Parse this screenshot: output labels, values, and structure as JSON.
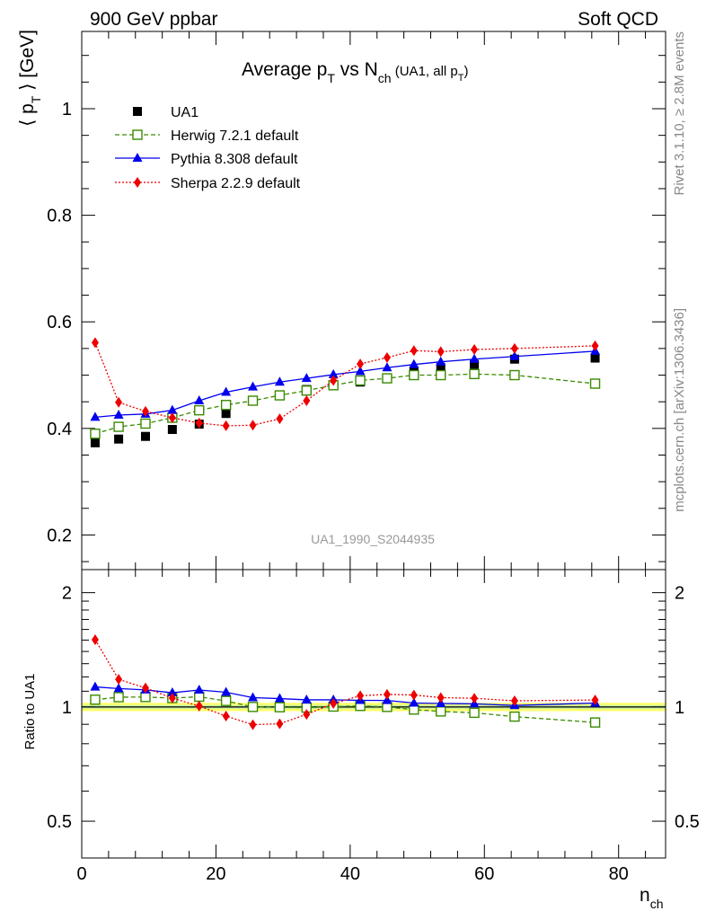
{
  "header": {
    "left": "900 GeV ppbar",
    "right": "Soft QCD"
  },
  "side": {
    "rivet": "Rivet 3.1.10, ≥ 2.8M events",
    "mcplots": "mcplots.cern.ch [arXiv:1306.3436]"
  },
  "chart_data": [
    {
      "type": "scatter",
      "title": {
        "main": "Average p",
        "main_sub": "T",
        "vs": " vs N",
        "vs_sub": "ch",
        "paren_open": " (UA1, all p",
        "paren_sub": "T",
        "paren_close": ")"
      },
      "watermark": "UA1_1990_S2044935",
      "ylabel": {
        "l": "⟨ p",
        "sub": "T",
        "r": " ⟩ [GeV]"
      },
      "xlim": [
        0,
        87
      ],
      "ylim": [
        0.135,
        1.145
      ],
      "y_ticks": [
        0.2,
        0.4,
        0.6,
        0.8,
        1.0
      ],
      "y_tick_labels": [
        "0.2",
        "0.4",
        "0.6",
        "0.8",
        "1"
      ],
      "grid": false,
      "legend_position": "top-left",
      "x": [
        2,
        5.5,
        9.5,
        13.5,
        17.5,
        21.5,
        25.5,
        29.5,
        33.5,
        37.5,
        41.5,
        45.5,
        49.5,
        53.5,
        58.5,
        64.5,
        76.5
      ],
      "series": [
        {
          "name": "UA1",
          "style": "data",
          "color": "#000000",
          "marker": "square-filled",
          "values": [
            0.373,
            0.38,
            0.385,
            0.398,
            0.408,
            0.428,
            0.452,
            0.463,
            0.473,
            0.48,
            0.487,
            0.494,
            0.508,
            0.514,
            0.52,
            0.53,
            0.532
          ]
        },
        {
          "name": "Herwig 7.2.1 default",
          "style": "dashed",
          "color": "#3a8a00",
          "marker": "square-open",
          "values": [
            0.39,
            0.403,
            0.409,
            0.42,
            0.434,
            0.444,
            0.452,
            0.462,
            0.471,
            0.481,
            0.49,
            0.494,
            0.5,
            0.5,
            0.502,
            0.5,
            0.484
          ]
        },
        {
          "name": "Pythia 8.308 default",
          "style": "solid",
          "color": "#0000ee",
          "marker": "triangle",
          "values": [
            0.421,
            0.425,
            0.427,
            0.434,
            0.452,
            0.468,
            0.478,
            0.487,
            0.494,
            0.501,
            0.507,
            0.514,
            0.52,
            0.525,
            0.53,
            0.535,
            0.545
          ]
        },
        {
          "name": "Sherpa 2.2.9 default",
          "style": "dotted",
          "color": "#ee0000",
          "marker": "diamond",
          "values": [
            0.561,
            0.449,
            0.432,
            0.42,
            0.41,
            0.405,
            0.406,
            0.418,
            0.452,
            0.49,
            0.521,
            0.533,
            0.546,
            0.544,
            0.548,
            0.55,
            0.555
          ]
        }
      ]
    },
    {
      "type": "scatter",
      "ylabel": "Ratio to UA1",
      "xlabel": {
        "l": "n",
        "sub": "ch"
      },
      "xlim": [
        0,
        87
      ],
      "x_ticks": [
        0,
        20,
        40,
        60,
        80
      ],
      "x_tick_labels": [
        "0",
        "20",
        "40",
        "60",
        "80"
      ],
      "ylim": [
        0.4,
        2.3
      ],
      "y_scale": "log",
      "y_ticks": [
        0.5,
        1,
        2
      ],
      "y_tick_labels": [
        "0.5",
        "1",
        "2"
      ],
      "reference_line": 1.0,
      "uncertainty_band": {
        "fill": "#ffff66",
        "inner": "#c8f0a0",
        "lo": 0.975,
        "hi": 1.025
      },
      "x": [
        2,
        5.5,
        9.5,
        13.5,
        17.5,
        21.5,
        25.5,
        29.5,
        33.5,
        37.5,
        41.5,
        45.5,
        49.5,
        53.5,
        58.5,
        64.5,
        76.5
      ],
      "series": [
        {
          "name": "Herwig 7.2.1 default",
          "style": "dashed",
          "color": "#3a8a00",
          "marker": "square-open",
          "values": [
            1.045,
            1.061,
            1.062,
            1.055,
            1.064,
            1.037,
            1.0,
            0.998,
            0.996,
            1.002,
            1.006,
            1.0,
            0.984,
            0.973,
            0.965,
            0.943,
            0.91
          ]
        },
        {
          "name": "Pythia 8.308 default",
          "style": "solid",
          "color": "#0000ee",
          "marker": "triangle",
          "values": [
            1.129,
            1.118,
            1.109,
            1.09,
            1.108,
            1.093,
            1.058,
            1.052,
            1.044,
            1.044,
            1.041,
            1.04,
            1.024,
            1.021,
            1.019,
            1.009,
            1.024
          ]
        },
        {
          "name": "Sherpa 2.2.9 default",
          "style": "dotted",
          "color": "#ee0000",
          "marker": "diamond",
          "values": [
            1.504,
            1.182,
            1.122,
            1.055,
            1.005,
            0.946,
            0.898,
            0.903,
            0.956,
            1.021,
            1.07,
            1.079,
            1.075,
            1.058,
            1.054,
            1.038,
            1.043
          ]
        }
      ]
    }
  ]
}
